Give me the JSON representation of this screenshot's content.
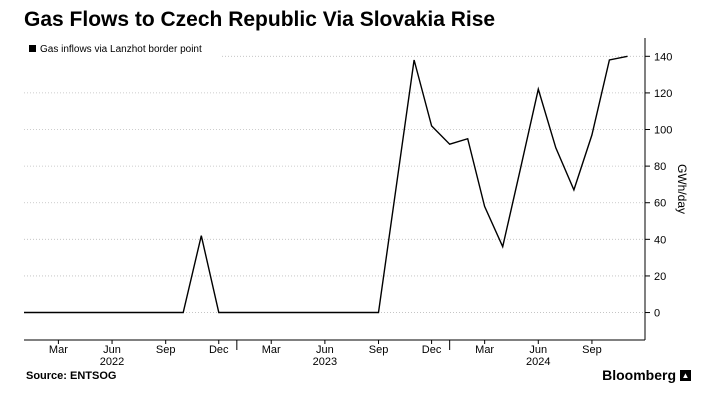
{
  "title": "Gas Flows to Czech Republic Via Slovakia Rise",
  "source": "Source: ENTSOG",
  "brand": "Bloomberg",
  "colors": {
    "line": "#000000",
    "grid": "#bdbdbd",
    "axis": "#000000",
    "text": "#000000",
    "legend_bg": "#ffffff"
  },
  "chart_data": {
    "type": "line",
    "title": "Gas Flows to Czech Republic Via Slovakia Rise",
    "ylabel": "GWh/day",
    "xlabel": "",
    "ylim": [
      -15,
      150
    ],
    "y_ticks": [
      0,
      20,
      40,
      60,
      80,
      100,
      120,
      140
    ],
    "y_axis_side": "right",
    "grid": "horizontal-dotted",
    "legend_position": "top-left",
    "x_ticks": [
      {
        "label": "Mar",
        "date": "2022-03-01"
      },
      {
        "label": "Jun",
        "date": "2022-06-01"
      },
      {
        "label": "Sep",
        "date": "2022-09-01"
      },
      {
        "label": "Dec",
        "date": "2022-12-01"
      },
      {
        "label": "Mar",
        "date": "2023-03-01"
      },
      {
        "label": "Jun",
        "date": "2023-06-01"
      },
      {
        "label": "Sep",
        "date": "2023-09-01"
      },
      {
        "label": "Dec",
        "date": "2023-12-01"
      },
      {
        "label": "Mar",
        "date": "2024-03-01"
      },
      {
        "label": "Jun",
        "date": "2024-06-01"
      },
      {
        "label": "Sep",
        "date": "2024-09-01"
      }
    ],
    "year_labels": [
      {
        "label": "2022",
        "date": "2022-06-01"
      },
      {
        "label": "2023",
        "date": "2023-06-01"
      },
      {
        "label": "2024",
        "date": "2024-06-01"
      }
    ],
    "series": [
      {
        "name": "Gas inflows via Lanzhot border point",
        "points": [
          {
            "x": "2022-01-01",
            "y": 0
          },
          {
            "x": "2022-02-01",
            "y": 0
          },
          {
            "x": "2022-03-01",
            "y": 0
          },
          {
            "x": "2022-04-01",
            "y": 0
          },
          {
            "x": "2022-05-01",
            "y": 0
          },
          {
            "x": "2022-06-01",
            "y": 0
          },
          {
            "x": "2022-07-01",
            "y": 0
          },
          {
            "x": "2022-08-01",
            "y": 0
          },
          {
            "x": "2022-09-01",
            "y": 0
          },
          {
            "x": "2022-10-01",
            "y": 0
          },
          {
            "x": "2022-11-01",
            "y": 42
          },
          {
            "x": "2022-12-01",
            "y": 0
          },
          {
            "x": "2023-01-01",
            "y": 0
          },
          {
            "x": "2023-02-01",
            "y": 0
          },
          {
            "x": "2023-03-01",
            "y": 0
          },
          {
            "x": "2023-04-01",
            "y": 0
          },
          {
            "x": "2023-05-01",
            "y": 0
          },
          {
            "x": "2023-06-01",
            "y": 0
          },
          {
            "x": "2023-07-01",
            "y": 0
          },
          {
            "x": "2023-08-01",
            "y": 0
          },
          {
            "x": "2023-09-01",
            "y": 0
          },
          {
            "x": "2023-11-01",
            "y": 138
          },
          {
            "x": "2023-12-01",
            "y": 102
          },
          {
            "x": "2024-01-01",
            "y": 92
          },
          {
            "x": "2024-02-01",
            "y": 95
          },
          {
            "x": "2024-03-01",
            "y": 58
          },
          {
            "x": "2024-04-01",
            "y": 36
          },
          {
            "x": "2024-05-01",
            "y": 78
          },
          {
            "x": "2024-06-01",
            "y": 122
          },
          {
            "x": "2024-07-01",
            "y": 90
          },
          {
            "x": "2024-08-01",
            "y": 67
          },
          {
            "x": "2024-09-01",
            "y": 97
          },
          {
            "x": "2024-10-01",
            "y": 138
          },
          {
            "x": "2024-11-01",
            "y": 140
          }
        ]
      }
    ]
  }
}
